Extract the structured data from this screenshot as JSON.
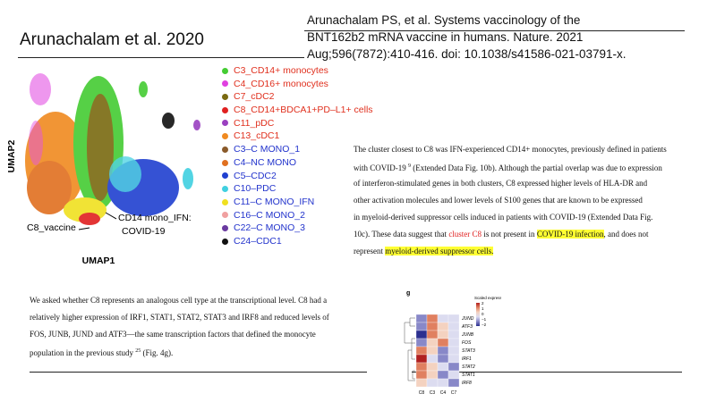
{
  "header": {
    "title": "Arunachalam et al. 2020",
    "citation": [
      "Arunachalam PS, et al. Systems vaccinology of the",
      "BNT162b2 mRNA vaccine in humans. Nature. 2021",
      "Aug;596(7872):410-416. doi: 10.1038/s41586-021-03791-x."
    ]
  },
  "umap": {
    "x_label": "UMAP1",
    "y_label": "UMAP2",
    "annotations": [
      "C8_vaccine",
      "CD14 mono_IFN:",
      "COVID-19"
    ],
    "legend": [
      {
        "label": "C3_CD14+ monocytes",
        "color": "#44cc33",
        "text_color": "#e0301e"
      },
      {
        "label": "C4_CD16+ monocytes",
        "color": "#e040e0",
        "text_color": "#e0301e"
      },
      {
        "label": "C7_cDC2",
        "color": "#7a6a10",
        "text_color": "#e0301e"
      },
      {
        "label": "C8_CD14+BDCA1+PD–L1+ cells",
        "color": "#e02020",
        "text_color": "#e0301e"
      },
      {
        "label": "C11_pDC",
        "color": "#9a40c0",
        "text_color": "#e0301e"
      },
      {
        "label": "C13_cDC1",
        "color": "#f08a20",
        "text_color": "#e0301e"
      },
      {
        "label": "C3–C MONO_1",
        "color": "#8a5a2a",
        "text_color": "#2233cc"
      },
      {
        "label": "C4–NC MONO",
        "color": "#e07020",
        "text_color": "#2233cc"
      },
      {
        "label": "C5–CDC2",
        "color": "#2040d0",
        "text_color": "#2233cc"
      },
      {
        "label": "C10–PDC",
        "color": "#40d0e0",
        "text_color": "#2233cc"
      },
      {
        "label": "C11–C MONO_IFN",
        "color": "#f0e020",
        "text_color": "#2233cc"
      },
      {
        "label": "C16–C MONO_2",
        "color": "#f0a0a0",
        "text_color": "#2233cc"
      },
      {
        "label": "C22–C MONO_3",
        "color": "#6a3aa0",
        "text_color": "#2233cc"
      },
      {
        "label": "C24–CDC1",
        "color": "#111111",
        "text_color": "#2233cc"
      }
    ]
  },
  "right_paragraph": [
    [
      {
        "text": "The cluster closest to C8 was IFN-experienced CD14+ monocytes, previously defined in patients",
        "style": "plain"
      }
    ],
    [
      {
        "text": "with COVID-19 ",
        "style": "plain"
      },
      {
        "text": "9",
        "style": "sup"
      },
      {
        "text": " (Extended Data Fig. 10b). Although the partial overlap was due to expression",
        "style": "plain"
      }
    ],
    [
      {
        "text": "of interferon-stimulated genes in both clusters, C8 expressed higher levels of HLA-DR and",
        "style": "plain"
      }
    ],
    [
      {
        "text": "other activation molecules and lower levels of S100 genes that are known to be expressed",
        "style": "plain"
      }
    ],
    [
      {
        "text": "in myeloid-derived suppressor cells induced in patients with COVID-19 (Extended Data Fig.",
        "style": "plain"
      }
    ],
    [
      {
        "text": "10c). These data suggest that ",
        "style": "plain"
      },
      {
        "text": "cluster C8",
        "style": "red"
      },
      {
        "text": " is not present in ",
        "style": "plain"
      },
      {
        "text": "COVID-19 infection",
        "style": "highlight"
      },
      {
        "text": ", and does not",
        "style": "plain"
      }
    ],
    [
      {
        "text": "represent ",
        "style": "plain"
      },
      {
        "text": "myeloid-derived suppressor cells.",
        "style": "highlight"
      }
    ]
  ],
  "bottom_paragraph": [
    [
      {
        "text": "We asked whether C8 represents an analogous cell type at the transcriptional level. C8 had a",
        "style": "plain"
      }
    ],
    [
      {
        "text": "relatively higher expression of IRF1, STAT1, STAT2, STAT3 and IRF8 and reduced levels of",
        "style": "plain"
      }
    ],
    [
      {
        "text": "FOS, JUNB, JUND and ATF3—the same transcription factors that defined the monocyte",
        "style": "plain"
      }
    ],
    [
      {
        "text": "population in the previous study ",
        "style": "plain"
      },
      {
        "text": "25",
        "style": "sup"
      },
      {
        "text": " (Fig. 4g).",
        "style": "plain"
      }
    ]
  ],
  "heatmap": {
    "panel": "g",
    "scale_title": "Scaled expression",
    "scale_labels": [
      "2",
      "1",
      "0",
      "−1",
      "−2"
    ],
    "rows": [
      "JUND",
      "ATF3",
      "JUNB",
      "FOS",
      "STAT3",
      "IRF1",
      "STAT2",
      "STAT1",
      "IRF8"
    ],
    "columns": [
      "C8",
      "C3",
      "C4",
      "C7"
    ]
  }
}
